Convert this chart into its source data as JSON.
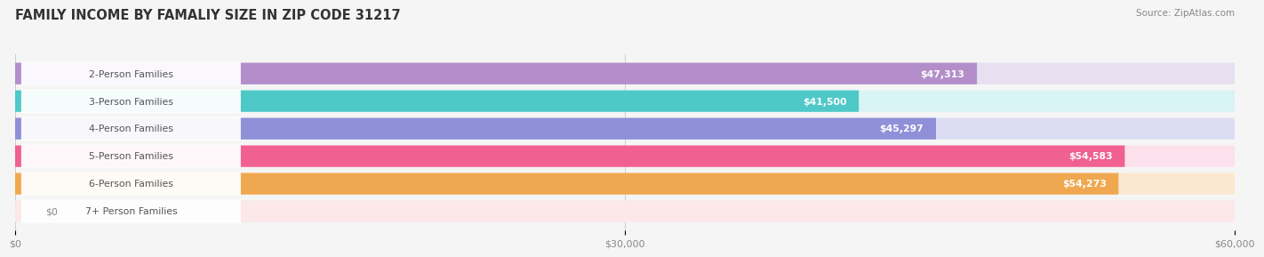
{
  "title": "FAMILY INCOME BY FAMALIY SIZE IN ZIP CODE 31217",
  "source": "Source: ZipAtlas.com",
  "categories": [
    "2-Person Families",
    "3-Person Families",
    "4-Person Families",
    "5-Person Families",
    "6-Person Families",
    "7+ Person Families"
  ],
  "values": [
    47313,
    41500,
    45297,
    54583,
    54273,
    0
  ],
  "bar_colors": [
    "#b38ecb",
    "#4fc8c8",
    "#9090d8",
    "#f06090",
    "#f0a850",
    "#f0b8b8"
  ],
  "bar_bg_colors": [
    "#e8e0f0",
    "#d8f4f4",
    "#dcdcf4",
    "#fce0ec",
    "#fce8d0",
    "#fce8e8"
  ],
  "value_labels": [
    "$47,313",
    "$41,500",
    "$45,297",
    "$54,583",
    "$54,273",
    "$0"
  ],
  "xlim": [
    0,
    60000
  ],
  "xtick_values": [
    0,
    30000,
    60000
  ],
  "xtick_labels": [
    "$0",
    "$30,000",
    "$60,000"
  ],
  "background_color": "#f5f5f5",
  "label_bg_color": "#ffffff",
  "bar_height": 0.62,
  "rounding": 0.13
}
